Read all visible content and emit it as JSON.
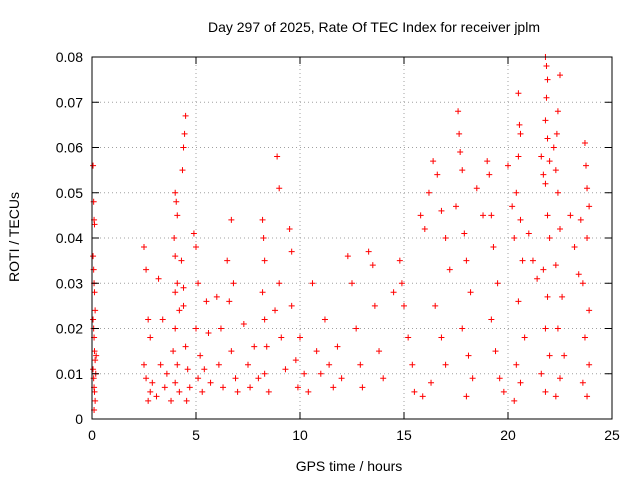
{
  "chart_data": {
    "type": "scatter",
    "title": "Day 297 of 2025, Rate Of TEC Index for receiver jplm",
    "xlabel": "GPS time / hours",
    "ylabel": "ROTI / TECUs",
    "xlim": [
      0,
      25
    ],
    "ylim": [
      0,
      0.08
    ],
    "x_ticks": [
      0,
      5,
      10,
      15,
      20,
      25
    ],
    "x_tick_labels": [
      "0",
      "5",
      "10",
      "15",
      "20",
      "25"
    ],
    "y_ticks": [
      0,
      0.01,
      0.02,
      0.03,
      0.04,
      0.05,
      0.06,
      0.07,
      0.08
    ],
    "y_tick_labels": [
      "0",
      "0.01",
      "0.02",
      "0.03",
      "0.04",
      "0.05",
      "0.06",
      "0.07",
      "0.08"
    ],
    "grid": true,
    "marker": "+",
    "color": "#ff0000",
    "series": [
      {
        "name": "ROTI",
        "points": [
          [
            0.05,
            0.056
          ],
          [
            0.08,
            0.048
          ],
          [
            0.1,
            0.044
          ],
          [
            0.12,
            0.043
          ],
          [
            0.05,
            0.036
          ],
          [
            0.08,
            0.033
          ],
          [
            0.1,
            0.03
          ],
          [
            0.12,
            0.028
          ],
          [
            0.15,
            0.024
          ],
          [
            0.05,
            0.022
          ],
          [
            0.08,
            0.02
          ],
          [
            0.1,
            0.018
          ],
          [
            0.12,
            0.015
          ],
          [
            0.15,
            0.013
          ],
          [
            0.05,
            0.011
          ],
          [
            0.08,
            0.009
          ],
          [
            0.1,
            0.007
          ],
          [
            0.12,
            0.006
          ],
          [
            0.15,
            0.004
          ],
          [
            0.1,
            0.002
          ],
          [
            0.2,
            0.014
          ],
          [
            0.18,
            0.01
          ],
          [
            2.5,
            0.038
          ],
          [
            2.6,
            0.033
          ],
          [
            2.7,
            0.022
          ],
          [
            2.8,
            0.018
          ],
          [
            2.5,
            0.012
          ],
          [
            2.6,
            0.009
          ],
          [
            2.8,
            0.006
          ],
          [
            2.7,
            0.004
          ],
          [
            2.9,
            0.008
          ],
          [
            3.2,
            0.031
          ],
          [
            3.4,
            0.022
          ],
          [
            3.3,
            0.012
          ],
          [
            3.5,
            0.007
          ],
          [
            3.6,
            0.01
          ],
          [
            3.1,
            0.005
          ],
          [
            4.0,
            0.05
          ],
          [
            4.05,
            0.048
          ],
          [
            4.1,
            0.045
          ],
          [
            3.95,
            0.04
          ],
          [
            4.0,
            0.036
          ],
          [
            4.1,
            0.03
          ],
          [
            4.0,
            0.028
          ],
          [
            4.2,
            0.024
          ],
          [
            4.0,
            0.02
          ],
          [
            3.9,
            0.015
          ],
          [
            4.1,
            0.012
          ],
          [
            4.0,
            0.008
          ],
          [
            4.2,
            0.006
          ],
          [
            3.8,
            0.004
          ],
          [
            4.3,
            0.035
          ],
          [
            4.4,
            0.029
          ],
          [
            4.5,
            0.067
          ],
          [
            4.45,
            0.063
          ],
          [
            4.4,
            0.06
          ],
          [
            4.35,
            0.055
          ],
          [
            4.4,
            0.025
          ],
          [
            4.5,
            0.016
          ],
          [
            4.6,
            0.011
          ],
          [
            4.7,
            0.007
          ],
          [
            4.55,
            0.004
          ],
          [
            4.9,
            0.041
          ],
          [
            5.0,
            0.038
          ],
          [
            5.1,
            0.03
          ],
          [
            5.0,
            0.02
          ],
          [
            5.2,
            0.014
          ],
          [
            5.1,
            0.009
          ],
          [
            5.3,
            0.006
          ],
          [
            5.4,
            0.011
          ],
          [
            5.5,
            0.026
          ],
          [
            5.6,
            0.019
          ],
          [
            5.7,
            0.008
          ],
          [
            6.0,
            0.027
          ],
          [
            6.2,
            0.02
          ],
          [
            6.1,
            0.012
          ],
          [
            6.3,
            0.007
          ],
          [
            6.5,
            0.035
          ],
          [
            6.6,
            0.026
          ],
          [
            6.7,
            0.044
          ],
          [
            6.8,
            0.03
          ],
          [
            6.7,
            0.015
          ],
          [
            6.9,
            0.009
          ],
          [
            7.0,
            0.006
          ],
          [
            7.3,
            0.021
          ],
          [
            7.5,
            0.012
          ],
          [
            7.6,
            0.007
          ],
          [
            7.8,
            0.016
          ],
          [
            8.0,
            0.009
          ],
          [
            8.2,
            0.044
          ],
          [
            8.25,
            0.04
          ],
          [
            8.3,
            0.035
          ],
          [
            8.2,
            0.028
          ],
          [
            8.3,
            0.022
          ],
          [
            8.4,
            0.016
          ],
          [
            8.3,
            0.01
          ],
          [
            8.5,
            0.006
          ],
          [
            8.8,
            0.024
          ],
          [
            8.9,
            0.058
          ],
          [
            9.0,
            0.051
          ],
          [
            9.0,
            0.03
          ],
          [
            9.1,
            0.018
          ],
          [
            9.3,
            0.011
          ],
          [
            9.5,
            0.042
          ],
          [
            9.6,
            0.037
          ],
          [
            9.6,
            0.025
          ],
          [
            9.8,
            0.013
          ],
          [
            9.9,
            0.007
          ],
          [
            10.0,
            0.018
          ],
          [
            10.2,
            0.01
          ],
          [
            10.4,
            0.006
          ],
          [
            10.6,
            0.03
          ],
          [
            10.8,
            0.015
          ],
          [
            11.0,
            0.01
          ],
          [
            11.2,
            0.022
          ],
          [
            11.4,
            0.012
          ],
          [
            11.6,
            0.007
          ],
          [
            11.8,
            0.016
          ],
          [
            12.0,
            0.009
          ],
          [
            12.3,
            0.036
          ],
          [
            12.5,
            0.03
          ],
          [
            12.7,
            0.02
          ],
          [
            12.9,
            0.012
          ],
          [
            13.0,
            0.007
          ],
          [
            13.3,
            0.037
          ],
          [
            13.5,
            0.034
          ],
          [
            13.6,
            0.025
          ],
          [
            13.8,
            0.015
          ],
          [
            14.0,
            0.009
          ],
          [
            14.5,
            0.028
          ],
          [
            14.8,
            0.035
          ],
          [
            14.9,
            0.03
          ],
          [
            15.0,
            0.025
          ],
          [
            15.2,
            0.018
          ],
          [
            15.4,
            0.012
          ],
          [
            15.5,
            0.006
          ],
          [
            15.8,
            0.045
          ],
          [
            16.0,
            0.042
          ],
          [
            16.2,
            0.05
          ],
          [
            16.4,
            0.057
          ],
          [
            16.6,
            0.054
          ],
          [
            16.8,
            0.046
          ],
          [
            17.0,
            0.04
          ],
          [
            17.2,
            0.033
          ],
          [
            16.5,
            0.025
          ],
          [
            16.8,
            0.018
          ],
          [
            17.0,
            0.012
          ],
          [
            16.3,
            0.008
          ],
          [
            15.9,
            0.005
          ],
          [
            17.6,
            0.068
          ],
          [
            17.65,
            0.063
          ],
          [
            17.7,
            0.059
          ],
          [
            17.8,
            0.055
          ],
          [
            17.5,
            0.047
          ],
          [
            17.9,
            0.041
          ],
          [
            18.0,
            0.035
          ],
          [
            18.2,
            0.028
          ],
          [
            17.8,
            0.02
          ],
          [
            18.1,
            0.014
          ],
          [
            18.3,
            0.009
          ],
          [
            18.0,
            0.005
          ],
          [
            18.5,
            0.051
          ],
          [
            18.8,
            0.045
          ],
          [
            19.0,
            0.057
          ],
          [
            19.1,
            0.054
          ],
          [
            19.2,
            0.045
          ],
          [
            19.3,
            0.038
          ],
          [
            19.5,
            0.03
          ],
          [
            19.2,
            0.022
          ],
          [
            19.4,
            0.015
          ],
          [
            19.6,
            0.009
          ],
          [
            19.8,
            0.006
          ],
          [
            20.0,
            0.056
          ],
          [
            20.2,
            0.047
          ],
          [
            20.3,
            0.04
          ],
          [
            20.5,
            0.072
          ],
          [
            20.55,
            0.065
          ],
          [
            20.6,
            0.063
          ],
          [
            20.5,
            0.058
          ],
          [
            20.4,
            0.05
          ],
          [
            20.6,
            0.044
          ],
          [
            20.7,
            0.035
          ],
          [
            20.5,
            0.026
          ],
          [
            20.8,
            0.018
          ],
          [
            20.4,
            0.012
          ],
          [
            20.6,
            0.008
          ],
          [
            20.3,
            0.004
          ],
          [
            21.0,
            0.041
          ],
          [
            21.2,
            0.035
          ],
          [
            21.4,
            0.031
          ],
          [
            21.6,
            0.058
          ],
          [
            21.7,
            0.054
          ],
          [
            21.8,
            0.08
          ],
          [
            21.85,
            0.078
          ],
          [
            21.9,
            0.075
          ],
          [
            21.85,
            0.071
          ],
          [
            21.8,
            0.066
          ],
          [
            21.9,
            0.062
          ],
          [
            22.0,
            0.057
          ],
          [
            21.8,
            0.052
          ],
          [
            21.9,
            0.045
          ],
          [
            22.0,
            0.04
          ],
          [
            21.7,
            0.033
          ],
          [
            21.9,
            0.027
          ],
          [
            21.8,
            0.02
          ],
          [
            22.0,
            0.014
          ],
          [
            21.6,
            0.01
          ],
          [
            21.8,
            0.006
          ],
          [
            22.2,
            0.06
          ],
          [
            22.3,
            0.055
          ],
          [
            22.5,
            0.076
          ],
          [
            22.4,
            0.068
          ],
          [
            22.35,
            0.063
          ],
          [
            22.4,
            0.05
          ],
          [
            22.5,
            0.042
          ],
          [
            22.3,
            0.034
          ],
          [
            22.6,
            0.027
          ],
          [
            22.4,
            0.02
          ],
          [
            22.7,
            0.014
          ],
          [
            22.5,
            0.009
          ],
          [
            22.3,
            0.005
          ],
          [
            23.0,
            0.045
          ],
          [
            23.2,
            0.038
          ],
          [
            23.4,
            0.032
          ],
          [
            23.5,
            0.044
          ],
          [
            23.7,
            0.061
          ],
          [
            23.75,
            0.056
          ],
          [
            23.8,
            0.051
          ],
          [
            23.9,
            0.047
          ],
          [
            23.8,
            0.04
          ],
          [
            23.6,
            0.03
          ],
          [
            23.9,
            0.024
          ],
          [
            23.7,
            0.018
          ],
          [
            23.9,
            0.012
          ],
          [
            23.6,
            0.008
          ],
          [
            23.8,
            0.005
          ]
        ]
      }
    ]
  }
}
